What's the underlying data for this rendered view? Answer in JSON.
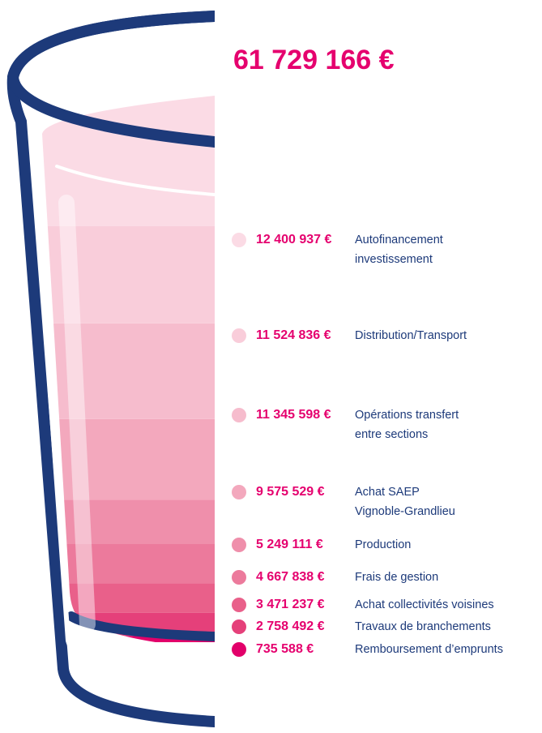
{
  "chart_data": {
    "type": "stacked-glass",
    "title": "61 729 166 €",
    "categories": [
      [
        "Autofinancement",
        "investissement"
      ],
      [
        "Distribution/Transport"
      ],
      [
        "Opérations transfert",
        "entre sections"
      ],
      [
        "Achat SAEP",
        "Vignoble-Grandlieu"
      ],
      [
        "Production"
      ],
      [
        "Frais de gestion"
      ],
      [
        "Achat collectivités voisines"
      ],
      [
        "Travaux de branchements"
      ],
      [
        "Remboursement d’emprunts"
      ]
    ],
    "values": [
      12400937,
      11524836,
      11345598,
      9575529,
      5249111,
      4667838,
      3471237,
      2758492,
      735588
    ],
    "value_labels": [
      "12 400 937 €",
      "11 524 836 €",
      "11 345 598 €",
      "9 575 529 €",
      "5 249 111 €",
      "4 667 838 €",
      "3 471 237 €",
      "2 758 492 €",
      "735 588 €"
    ],
    "colors": [
      "#fbdbe5",
      "#f9cdda",
      "#f6bccd",
      "#f3a8bd",
      "#ef8fab",
      "#ec7a9c",
      "#e9608a",
      "#e5407a",
      "#e2006a"
    ]
  }
}
